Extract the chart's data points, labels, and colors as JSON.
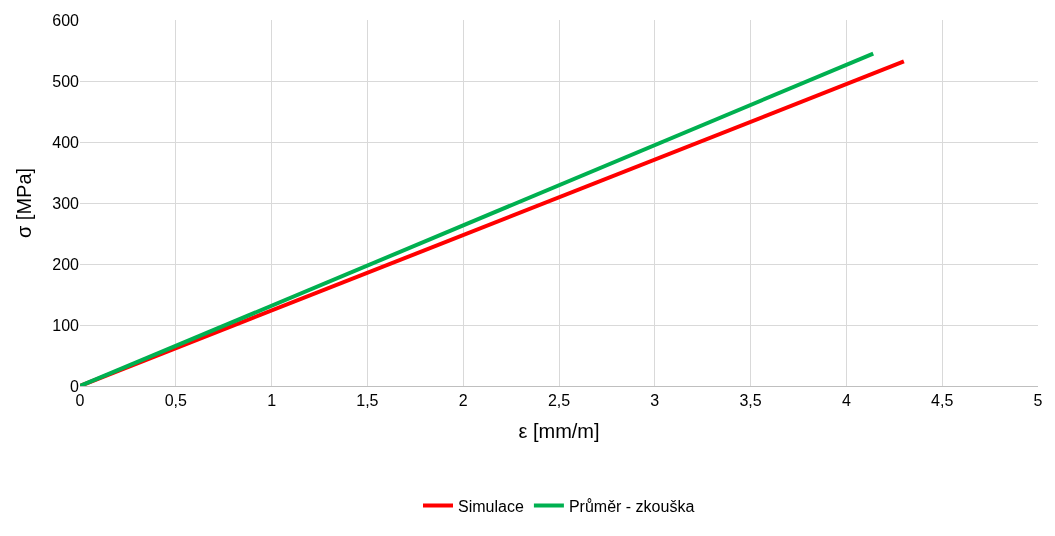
{
  "chart_data": {
    "type": "line",
    "xlabel": "ε [mm/m]",
    "ylabel": "σ [MPa]",
    "series": [
      {
        "name": "Simulace",
        "color": "#ff0000",
        "x": [
          0,
          4.3
        ],
        "values": [
          0,
          532
        ]
      },
      {
        "name": "Průměr - zkouška",
        "color": "#00b050",
        "x": [
          0,
          4.14
        ],
        "values": [
          0,
          545
        ]
      }
    ],
    "xlim": [
      0,
      5
    ],
    "ylim": [
      0,
      600
    ],
    "xticks": [
      0,
      {
        "value": 0.5,
        "label": "0,5"
      },
      1,
      {
        "value": 1.5,
        "label": "1,5"
      },
      2,
      {
        "value": 2.5,
        "label": "2,5"
      },
      3,
      {
        "value": 3.5,
        "label": "3,5"
      },
      4,
      {
        "value": 4.5,
        "label": "4,5"
      },
      5
    ],
    "yticks": [
      0,
      100,
      200,
      300,
      400,
      500,
      600
    ],
    "grid": true,
    "legend": "bottom",
    "line_style": "solid"
  }
}
